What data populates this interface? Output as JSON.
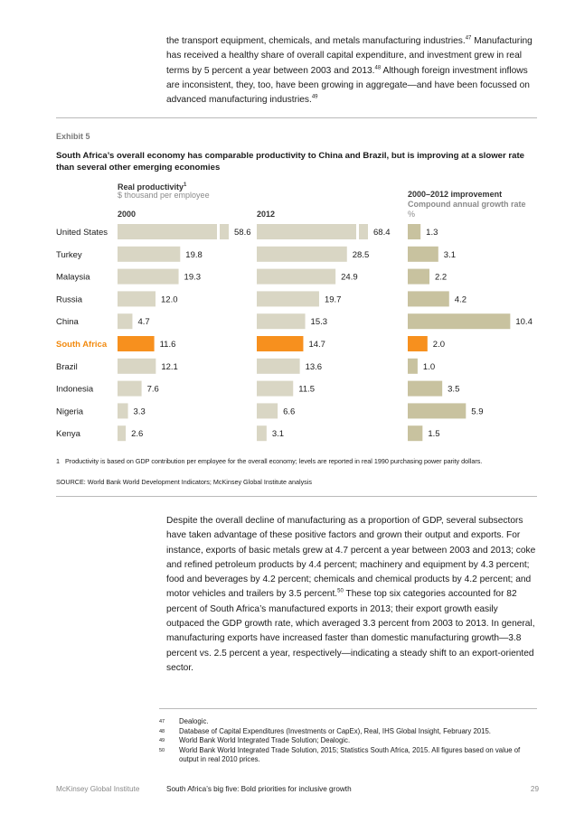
{
  "intro_paragraph": {
    "segments": [
      "the transport equipment, chemicals, and metals manufacturing industries.",
      "Manufacturing has received a healthy share of overall capital expenditure, and investment grew in real terms by 5 percent a year between 2003 and 2013.",
      "Although foreign investment inflows are inconsistent, they, too, have been growing in aggregate—and have been focussed on advanced manufacturing industries."
    ],
    "refs": [
      "47",
      "48",
      "49"
    ]
  },
  "exhibit": {
    "label": "Exhibit 5",
    "title": "South Africa’s overall economy has comparable productivity to China and Brazil, but is improving at a slower rate than several other emerging economies"
  },
  "chart_data": {
    "type": "bar",
    "title": "Real productivity",
    "title_note": "1",
    "subtitle": "$ thousand per employee",
    "categories": [
      "United States",
      "Turkey",
      "Malaysia",
      "Russia",
      "China",
      "South Africa",
      "Brazil",
      "Indonesia",
      "Nigeria",
      "Kenya"
    ],
    "highlight_category": "South Africa",
    "series": [
      {
        "name": "2000",
        "values": [
          58.6,
          19.8,
          19.3,
          12.0,
          4.7,
          11.6,
          12.1,
          7.6,
          3.3,
          2.6
        ],
        "value_labels": [
          "58.6",
          "19.8",
          "19.3",
          "12.0",
          "4.7",
          "11.6",
          "12.1",
          "7.6",
          "3.3",
          "2.6"
        ],
        "broken_axis_categories": [
          "United States"
        ]
      },
      {
        "name": "2012",
        "values": [
          68.4,
          28.5,
          24.9,
          19.7,
          15.3,
          14.7,
          13.6,
          11.5,
          6.6,
          3.1
        ],
        "value_labels": [
          "68.4",
          "28.5",
          "24.9",
          "19.7",
          "15.3",
          "14.7",
          "13.6",
          "11.5",
          "6.6",
          "3.1"
        ],
        "broken_axis_categories": [
          "United States"
        ]
      },
      {
        "name": "2000–2012 improvement",
        "subtitle": "Compound annual growth rate",
        "unit": "%",
        "values": [
          1.3,
          3.1,
          2.2,
          4.2,
          10.4,
          2.0,
          1.0,
          3.5,
          5.9,
          1.5
        ],
        "value_labels": [
          "1.3",
          "3.1",
          "2.2",
          "4.2",
          "10.4",
          "2.0",
          "1.0",
          "3.5",
          "5.9",
          "1.5"
        ]
      }
    ],
    "colors": {
      "bar": "#d9d6c4",
      "bar_growth": "#c8c29f",
      "highlight": "#f7901e",
      "highlight_text": "#f28a0f"
    }
  },
  "chart_footnote": {
    "num": "1",
    "text": "Productivity is based on GDP contribution per employee for the overall economy; levels are reported in real 1990 purchasing power parity dollars."
  },
  "source": "SOURCE: World Bank World Development Indicators; McKinsey Global Institute analysis",
  "body_paragraph": {
    "segments": [
      "Despite the overall decline of manufacturing as a proportion of GDP, several subsectors have taken advantage of these positive factors and grown their output and exports. For instance, exports of basic metals grew at 4.7 percent a year between 2003 and 2013; coke and refined petroleum products by 4.4 percent; machinery and equipment by 4.3 percent; food and beverages by 4.2 percent; chemicals and chemical products by 4.2 percent; and motor vehicles and trailers by 3.5 percent.",
      "These top six categories accounted for 82 percent of South Africa’s manufactured exports in 2013; their export growth easily outpaced the GDP growth rate, which averaged 3.3 percent from 2003 to 2013. In general, manufacturing exports have increased faster than domestic manufacturing growth—3.8 percent vs. 2.5 percent a year, respectively—indicating a steady shift to an export-oriented sector."
    ],
    "refs": [
      "50"
    ]
  },
  "footnotes": [
    {
      "num": "47",
      "text": "Dealogic."
    },
    {
      "num": "48",
      "text": "Database of Capital Expenditures (Investments or CapEx), Real, IHS Global Insight, February 2015."
    },
    {
      "num": "49",
      "text": "World Bank World Integrated Trade Solution; Dealogic."
    },
    {
      "num": "50",
      "text": "World Bank World Integrated Trade Solution, 2015; Statistics South Africa, 2015. All figures based on value of output in real 2010 prices."
    }
  ],
  "footer": {
    "publisher": "McKinsey Global Institute",
    "report_title": "South Africa’s big five: Bold priorities for inclusive growth",
    "page_number": "29"
  }
}
